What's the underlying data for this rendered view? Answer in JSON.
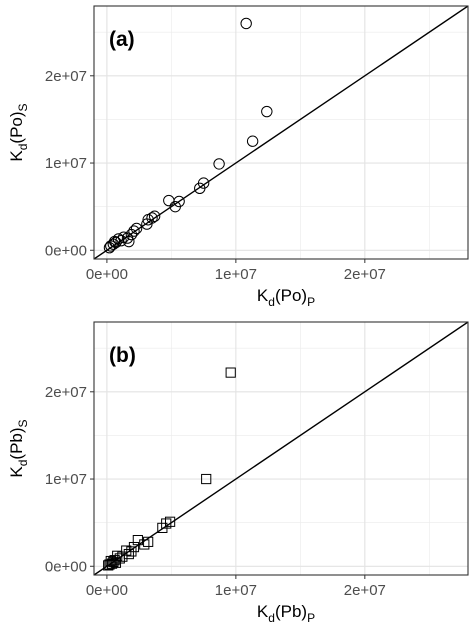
{
  "chart_data": [
    {
      "type": "scatter",
      "panel_label": "(a)",
      "marker": "circle",
      "xlabel": {
        "main": "K",
        "sub1": "d",
        "mid": "(Po)",
        "sub2": "P"
      },
      "ylabel": {
        "main": "K",
        "sub1": "d",
        "mid": "(Po)",
        "sub2": "S"
      },
      "xlim": [
        -1000000,
        28000000
      ],
      "ylim": [
        -1000000,
        28000000
      ],
      "xticks": [
        0,
        10000000,
        20000000
      ],
      "yticks": [
        0,
        10000000,
        20000000
      ],
      "xtick_labels": [
        "0e+00",
        "1e+07",
        "2e+07"
      ],
      "ytick_labels": [
        "0e+00",
        "1e+07",
        "2e+07"
      ],
      "grid": true,
      "reference_line": "y = x",
      "points": [
        {
          "x": 10800000,
          "y": 26000000
        },
        {
          "x": 12400000,
          "y": 15900000
        },
        {
          "x": 11300000,
          "y": 12500000
        },
        {
          "x": 8700000,
          "y": 9900000
        },
        {
          "x": 7500000,
          "y": 7700000
        },
        {
          "x": 7200000,
          "y": 7100000
        },
        {
          "x": 5600000,
          "y": 5600000
        },
        {
          "x": 5300000,
          "y": 5000000
        },
        {
          "x": 4800000,
          "y": 5700000
        },
        {
          "x": 3700000,
          "y": 3900000
        },
        {
          "x": 3500000,
          "y": 3700000
        },
        {
          "x": 3200000,
          "y": 3500000
        },
        {
          "x": 3100000,
          "y": 3000000
        },
        {
          "x": 2300000,
          "y": 2500000
        },
        {
          "x": 2100000,
          "y": 2200000
        },
        {
          "x": 1900000,
          "y": 1800000
        },
        {
          "x": 1600000,
          "y": 1400000
        },
        {
          "x": 1300000,
          "y": 1500000
        },
        {
          "x": 1100000,
          "y": 1100000
        },
        {
          "x": 900000,
          "y": 1300000
        },
        {
          "x": 700000,
          "y": 900000
        },
        {
          "x": 500000,
          "y": 700000
        },
        {
          "x": 300000,
          "y": 500000
        },
        {
          "x": 200000,
          "y": 300000
        },
        {
          "x": 1700000,
          "y": 1000000
        },
        {
          "x": 600000,
          "y": 1000000
        }
      ]
    },
    {
      "type": "scatter",
      "panel_label": "(b)",
      "marker": "square",
      "xlabel": {
        "main": "K",
        "sub1": "d",
        "mid": "(Pb)",
        "sub2": "P"
      },
      "ylabel": {
        "main": "K",
        "sub1": "d",
        "mid": "(Pb)",
        "sub2": "S"
      },
      "xlim": [
        -1000000,
        28000000
      ],
      "ylim": [
        -1000000,
        28000000
      ],
      "xticks": [
        0,
        10000000,
        20000000
      ],
      "yticks": [
        0,
        10000000,
        20000000
      ],
      "xtick_labels": [
        "0e+00",
        "1e+07",
        "2e+07"
      ],
      "ytick_labels": [
        "0e+00",
        "1e+07",
        "2e+07"
      ],
      "grid": true,
      "reference_line": "y = x",
      "points": [
        {
          "x": 9600000,
          "y": 22200000
        },
        {
          "x": 7700000,
          "y": 10000000
        },
        {
          "x": 4900000,
          "y": 5100000
        },
        {
          "x": 4600000,
          "y": 4900000
        },
        {
          "x": 4300000,
          "y": 4400000
        },
        {
          "x": 3200000,
          "y": 2800000
        },
        {
          "x": 2900000,
          "y": 2500000
        },
        {
          "x": 2400000,
          "y": 3000000
        },
        {
          "x": 2100000,
          "y": 2200000
        },
        {
          "x": 1900000,
          "y": 1700000
        },
        {
          "x": 1700000,
          "y": 1400000
        },
        {
          "x": 1500000,
          "y": 1800000
        },
        {
          "x": 1200000,
          "y": 1100000
        },
        {
          "x": 1000000,
          "y": 900000
        },
        {
          "x": 800000,
          "y": 1200000
        },
        {
          "x": 600000,
          "y": 700000
        },
        {
          "x": 500000,
          "y": 500000
        },
        {
          "x": 400000,
          "y": 300000
        },
        {
          "x": 300000,
          "y": 600000
        },
        {
          "x": 200000,
          "y": 200000
        },
        {
          "x": 100000,
          "y": 100000
        },
        {
          "x": 700000,
          "y": 400000
        }
      ]
    }
  ]
}
